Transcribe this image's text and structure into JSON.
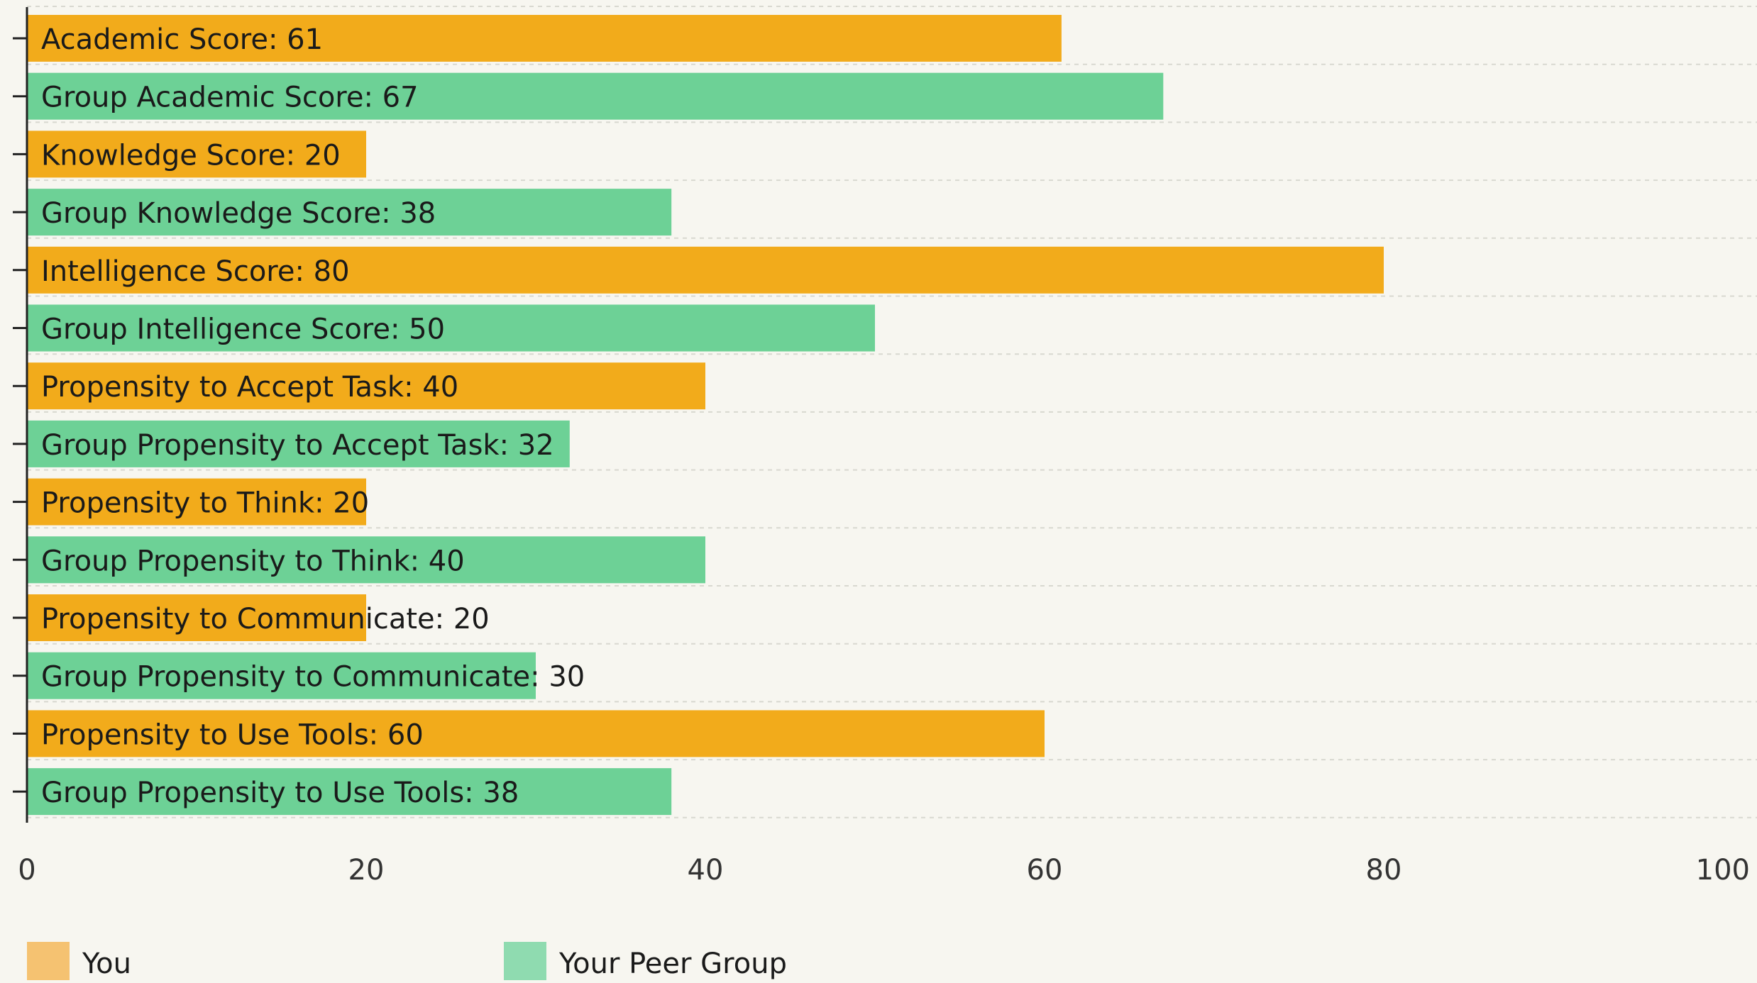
{
  "chart_data": {
    "type": "bar",
    "orientation": "horizontal",
    "categories": [
      "Academic Score",
      "Group Academic Score",
      "Knowledge Score",
      "Group Knowledge Score",
      "Intelligence Score",
      "Group Intelligence Score",
      "Propensity to Accept Task",
      "Group Propensity to Accept Task",
      "Propensity to Think",
      "Group Propensity to Think",
      "Propensity to Communicate",
      "Group Propensity to Communicate",
      "Propensity to Use Tools",
      "Group Propensity to Use Tools"
    ],
    "bars": [
      {
        "label": "Academic Score: 61",
        "value": 61,
        "series": "You"
      },
      {
        "label": "Group Academic Score: 67",
        "value": 67,
        "series": "Your Peer Group"
      },
      {
        "label": "Knowledge Score: 20",
        "value": 20,
        "series": "You"
      },
      {
        "label": "Group Knowledge Score: 38",
        "value": 38,
        "series": "Your Peer Group"
      },
      {
        "label": "Intelligence Score: 80",
        "value": 80,
        "series": "You"
      },
      {
        "label": "Group Intelligence Score: 50",
        "value": 50,
        "series": "Your Peer Group"
      },
      {
        "label": "Propensity to Accept Task: 40",
        "value": 40,
        "series": "You"
      },
      {
        "label": "Group Propensity to Accept Task: 32",
        "value": 32,
        "series": "Your Peer Group"
      },
      {
        "label": "Propensity to Think: 20",
        "value": 20,
        "series": "You"
      },
      {
        "label": "Group Propensity to Think: 40",
        "value": 40,
        "series": "Your Peer Group"
      },
      {
        "label": "Propensity to Communicate: 20",
        "value": 20,
        "series": "You"
      },
      {
        "label": "Group Propensity to Communicate: 30",
        "value": 30,
        "series": "Your Peer Group"
      },
      {
        "label": "Propensity to Use Tools: 60",
        "value": 60,
        "series": "You"
      },
      {
        "label": "Group Propensity to Use Tools: 38",
        "value": 38,
        "series": "Your Peer Group"
      }
    ],
    "series": [
      {
        "name": "You",
        "color": "#f2ab1b"
      },
      {
        "name": "Your Peer Group",
        "color": "#6dd196"
      }
    ],
    "xlim": [
      0,
      100
    ],
    "xticks": [
      "0",
      "20",
      "40",
      "60",
      "80",
      "100"
    ],
    "grid": true,
    "legend_position": "bottom-left",
    "title": "",
    "xlabel": "",
    "ylabel": ""
  },
  "colors": {
    "background": "#f7f6f0",
    "axis": "#222222",
    "grid": "#d8d8d0",
    "text": "#1a1a1a",
    "you_legend": "#f5c271",
    "peer_legend": "#8fdbb0"
  }
}
